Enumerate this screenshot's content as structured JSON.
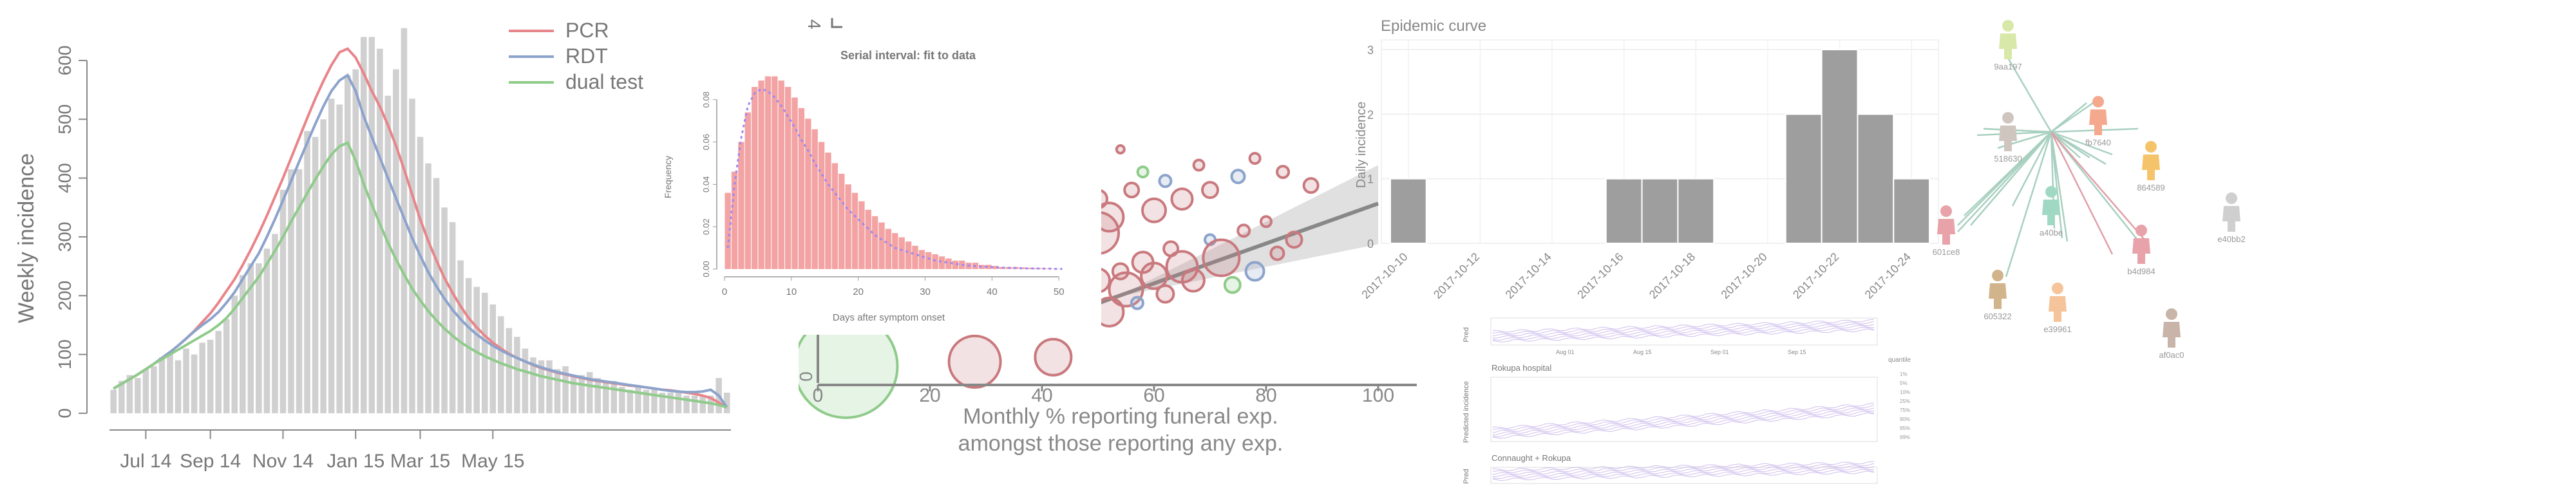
{
  "panels": {
    "weekly": {
      "ylabel": "Weekly incidence",
      "legend": [
        "PCR",
        "RDT",
        "dual test"
      ]
    },
    "serial": {
      "title": "Serial interval: fit to data",
      "xlabel": "Days after symptom onset",
      "ylabel": "Frequency"
    },
    "scatter": {
      "xlabel_line1": "Monthly % reporting funeral exp.",
      "xlabel_line2": "amongst those reporting any exp."
    },
    "epicurve": {
      "title": "Epidemic curve",
      "ylabel": "Daily incidence"
    },
    "network": {
      "node_labels": [
        "9aa197",
        "518630",
        "fb7640",
        "864589",
        "a40be",
        "b4d984",
        "e40bb2",
        "601ce8",
        "605322",
        "e39961",
        "af0ac0"
      ]
    },
    "projections": {
      "labels": [
        "Rokupa hospital",
        "Connaught + Rokupa"
      ],
      "ylabel_short": "Pred",
      "ylabel": "Predicted incidence",
      "x_ticks": [
        "Aug 01",
        "Aug 15",
        "Sep 01",
        "Sep 15"
      ],
      "legend_title": "quantile",
      "legend_items": [
        "1%",
        "5%",
        "10%",
        "25%",
        "75%",
        "90%",
        "95%",
        "99%"
      ]
    }
  },
  "chart_data": [
    {
      "id": "weekly",
      "type": "bar",
      "ylabel": "Weekly incidence",
      "x_tick_labels": [
        "Jul 14",
        "Sep 14",
        "Nov 14",
        "Jan 15",
        "Mar 15",
        "May 15"
      ],
      "y_ticks": [
        0,
        100,
        200,
        300,
        400,
        500,
        600
      ],
      "ylim": [
        0,
        670
      ],
      "bars": [
        40,
        55,
        65,
        60,
        75,
        80,
        95,
        100,
        90,
        110,
        100,
        120,
        125,
        140,
        160,
        200,
        235,
        255,
        255,
        280,
        305,
        380,
        415,
        415,
        480,
        470,
        500,
        535,
        525,
        575,
        585,
        640,
        640,
        620,
        540,
        585,
        655,
        535,
        470,
        425,
        400,
        350,
        325,
        260,
        230,
        215,
        205,
        185,
        165,
        145,
        130,
        110,
        95,
        90,
        90,
        75,
        80,
        65,
        65,
        70,
        60,
        55,
        55,
        45,
        40,
        45,
        40,
        40,
        35,
        35,
        35,
        30,
        30,
        30,
        30,
        60,
        35
      ],
      "series": [
        {
          "name": "PCR",
          "color": "#e8858a",
          "values": [
            42,
            50,
            58,
            66,
            75,
            84,
            94,
            104,
            115,
            127,
            140,
            155,
            170,
            188,
            208,
            228,
            252,
            278,
            306,
            336,
            368,
            400,
            434,
            468,
            502,
            535,
            565,
            592,
            614,
            620,
            605,
            578,
            548,
            522,
            490,
            455,
            415,
            372,
            330,
            293,
            260,
            230,
            205,
            182,
            162,
            146,
            132,
            120,
            110,
            101,
            94,
            88,
            82,
            77,
            73,
            69,
            66,
            63,
            60,
            57,
            55,
            53,
            51,
            49,
            47,
            46,
            44,
            42,
            40,
            39,
            37,
            35,
            33,
            30,
            26,
            18,
            10
          ]
        },
        {
          "name": "RDT",
          "color": "#8ca3cc",
          "values": [
            42,
            50,
            58,
            66,
            75,
            84,
            94,
            104,
            115,
            127,
            139,
            150,
            160,
            172,
            188,
            206,
            228,
            250,
            272,
            300,
            330,
            362,
            395,
            428,
            460,
            492,
            522,
            548,
            566,
            575,
            548,
            505,
            470,
            435,
            400,
            366,
            332,
            298,
            268,
            240,
            216,
            195,
            176,
            160,
            146,
            134,
            124,
            115,
            107,
            100,
            94,
            88,
            83,
            78,
            74,
            70,
            67,
            64,
            61,
            58,
            56,
            54,
            52,
            50,
            48,
            46,
            44,
            42,
            40,
            38,
            37,
            36,
            36,
            37,
            40,
            30,
            10
          ]
        },
        {
          "name": "dual test",
          "color": "#8fcb8a",
          "values": [
            42,
            50,
            58,
            66,
            75,
            84,
            92,
            100,
            108,
            116,
            124,
            132,
            140,
            150,
            162,
            178,
            196,
            214,
            232,
            254,
            276,
            300,
            326,
            350,
            374,
            398,
            420,
            440,
            454,
            460,
            430,
            390,
            355,
            322,
            290,
            262,
            236,
            212,
            192,
            174,
            158,
            144,
            132,
            121,
            112,
            104,
            97,
            91,
            85,
            80,
            75,
            71,
            67,
            63,
            60,
            57,
            54,
            51,
            49,
            47,
            45,
            43,
            41,
            39,
            37,
            35,
            33,
            31,
            29,
            27,
            25,
            23,
            21,
            19,
            17,
            14,
            10
          ]
        }
      ]
    },
    {
      "id": "serial",
      "type": "bar",
      "title": "Serial interval: fit to data",
      "xlabel": "Days after symptom onset",
      "ylabel": "Frequency",
      "x_ticks": [
        0,
        10,
        20,
        30,
        40,
        50
      ],
      "y_ticks": [
        0.0,
        0.02,
        0.04,
        0.06,
        0.08
      ],
      "ylim": [
        0,
        0.093
      ],
      "xlim": [
        0,
        52
      ],
      "bars": [
        0.036,
        0.046,
        0.06,
        0.074,
        0.086,
        0.089,
        0.091,
        0.091,
        0.089,
        0.086,
        0.081,
        0.076,
        0.071,
        0.066,
        0.06,
        0.055,
        0.05,
        0.045,
        0.04,
        0.036,
        0.032,
        0.028,
        0.025,
        0.022,
        0.019,
        0.017,
        0.015,
        0.013,
        0.011,
        0.009,
        0.008,
        0.007,
        0.006,
        0.005,
        0.004,
        0.004,
        0.003,
        0.003,
        0.002,
        0.002,
        0.0015,
        0.001,
        0.001,
        0.001,
        0.0008,
        0.0006,
        0.0005,
        0.0004,
        0.0003,
        0.0002
      ],
      "fit": [
        0.01,
        0.04,
        0.062,
        0.077,
        0.083,
        0.085,
        0.084,
        0.081,
        0.077,
        0.072,
        0.067,
        0.061,
        0.056,
        0.05,
        0.045,
        0.04,
        0.036,
        0.032,
        0.028,
        0.025,
        0.022,
        0.019,
        0.016,
        0.014,
        0.012,
        0.01,
        0.009,
        0.008,
        0.007,
        0.006,
        0.005,
        0.004,
        0.0035,
        0.003,
        0.0025,
        0.002,
        0.0017,
        0.0014,
        0.0012,
        0.001,
        0.0008,
        0.0007,
        0.0006,
        0.0005,
        0.0004,
        0.0003,
        0.0003,
        0.0002,
        0.0002,
        0.0001,
        0.0001
      ]
    },
    {
      "id": "scatter",
      "type": "scatter",
      "x_ticks": [
        0,
        20,
        40,
        60,
        80,
        100
      ],
      "y_tick_visible": "0",
      "xlim": [
        0,
        100
      ],
      "points": [
        {
          "x": 45,
          "y": 0.42,
          "r": 10,
          "c": "#c9797e"
        },
        {
          "x": 48,
          "y": 0.36,
          "r": 14,
          "c": "#c9797e"
        },
        {
          "x": 50,
          "y": 0.44,
          "r": 18,
          "c": "#c9797e"
        },
        {
          "x": 52,
          "y": 0.3,
          "r": 22,
          "c": "#c9797e"
        },
        {
          "x": 54,
          "y": 0.48,
          "r": 12,
          "c": "#c9797e"
        },
        {
          "x": 55,
          "y": 0.4,
          "r": 26,
          "c": "#c9797e"
        },
        {
          "x": 57,
          "y": 0.34,
          "r": 9,
          "c": "#8ca3cc"
        },
        {
          "x": 58,
          "y": 0.52,
          "r": 16,
          "c": "#c9797e"
        },
        {
          "x": 60,
          "y": 0.46,
          "r": 20,
          "c": "#c9797e"
        },
        {
          "x": 62,
          "y": 0.38,
          "r": 13,
          "c": "#c9797e"
        },
        {
          "x": 63,
          "y": 0.58,
          "r": 11,
          "c": "#c9797e"
        },
        {
          "x": 65,
          "y": 0.5,
          "r": 24,
          "c": "#c9797e"
        },
        {
          "x": 67,
          "y": 0.44,
          "r": 17,
          "c": "#c9797e"
        },
        {
          "x": 70,
          "y": 0.62,
          "r": 8,
          "c": "#8ca3cc"
        },
        {
          "x": 72,
          "y": 0.54,
          "r": 28,
          "c": "#c9797e"
        },
        {
          "x": 74,
          "y": 0.42,
          "r": 12,
          "c": "#8fcb8a"
        },
        {
          "x": 76,
          "y": 0.66,
          "r": 9,
          "c": "#c9797e"
        },
        {
          "x": 78,
          "y": 0.48,
          "r": 14,
          "c": "#8ca3cc"
        },
        {
          "x": 80,
          "y": 0.7,
          "r": 8,
          "c": "#c9797e"
        },
        {
          "x": 82,
          "y": 0.56,
          "r": 10,
          "c": "#c9797e"
        },
        {
          "x": 85,
          "y": 0.62,
          "r": 12,
          "c": "#c9797e"
        },
        {
          "x": 46,
          "y": 0.88,
          "r": 9,
          "c": "#c9797e"
        },
        {
          "x": 48,
          "y": 0.95,
          "r": 7,
          "c": "#c9797e"
        },
        {
          "x": 50,
          "y": 0.8,
          "r": 14,
          "c": "#c9797e"
        },
        {
          "x": 52,
          "y": 0.72,
          "r": 22,
          "c": "#c9797e"
        },
        {
          "x": 50,
          "y": 0.65,
          "r": 32,
          "c": "#c9797e"
        },
        {
          "x": 54,
          "y": 1.02,
          "r": 6,
          "c": "#c9797e"
        },
        {
          "x": 56,
          "y": 0.84,
          "r": 11,
          "c": "#c9797e"
        },
        {
          "x": 58,
          "y": 0.92,
          "r": 8,
          "c": "#8fcb8a"
        },
        {
          "x": 60,
          "y": 0.75,
          "r": 18,
          "c": "#c9797e"
        },
        {
          "x": 62,
          "y": 0.88,
          "r": 9,
          "c": "#8ca3cc"
        },
        {
          "x": 65,
          "y": 0.8,
          "r": 16,
          "c": "#c9797e"
        },
        {
          "x": 68,
          "y": 0.95,
          "r": 8,
          "c": "#c9797e"
        },
        {
          "x": 70,
          "y": 0.84,
          "r": 12,
          "c": "#c9797e"
        },
        {
          "x": 75,
          "y": 0.9,
          "r": 10,
          "c": "#8ca3cc"
        },
        {
          "x": 78,
          "y": 0.98,
          "r": 8,
          "c": "#c9797e"
        },
        {
          "x": 83,
          "y": 0.92,
          "r": 9,
          "c": "#c9797e"
        },
        {
          "x": 88,
          "y": 0.86,
          "r": 11,
          "c": "#c9797e"
        },
        {
          "x": 5,
          "y": 0.06,
          "r": 80,
          "c": "#8fcb8a"
        },
        {
          "x": 28,
          "y": 0.08,
          "r": 40,
          "c": "#c9797e"
        },
        {
          "x": 42,
          "y": 0.1,
          "r": 28,
          "c": "#c9797e"
        }
      ]
    },
    {
      "id": "epicurve",
      "type": "bar",
      "title": "Epidemic curve",
      "ylabel": "Daily incidence",
      "y_ticks": [
        0,
        1,
        2,
        3
      ],
      "ylim": [
        0,
        3.15
      ],
      "x_tick_labels": [
        "2017-10-10",
        "2017-10-12",
        "2017-10-14",
        "2017-10-16",
        "2017-10-18",
        "2017-10-20",
        "2017-10-22",
        "2017-10-24"
      ],
      "dates": [
        "2017-10-10",
        "2017-10-11",
        "2017-10-12",
        "2017-10-13",
        "2017-10-14",
        "2017-10-15",
        "2017-10-16",
        "2017-10-17",
        "2017-10-18",
        "2017-10-19",
        "2017-10-20",
        "2017-10-21",
        "2017-10-22",
        "2017-10-23",
        "2017-10-24"
      ],
      "values": [
        1,
        0,
        0,
        0,
        0,
        0,
        1,
        1,
        1,
        0,
        0,
        2,
        3,
        2,
        1
      ],
      "color": "#9e9e9e"
    }
  ]
}
